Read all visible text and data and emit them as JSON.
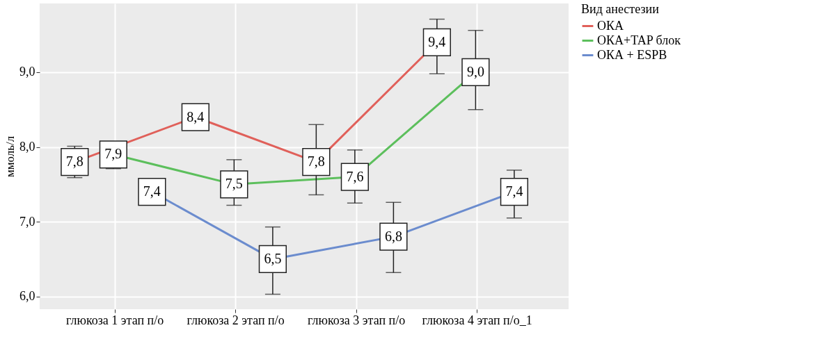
{
  "chart_data": {
    "type": "line",
    "ylabel": "ммоль/л",
    "legend_title": "Вид анестезии",
    "legend": "right",
    "grid": true,
    "marker": "square",
    "categories": [
      "глюкоза 1 этап п/о",
      "глюкоза 2 этап п/о",
      "глюкоза 3 этап п/о",
      "глюкоза 4 этап п/о_1"
    ],
    "ylim": [
      5.83,
      9.92
    ],
    "yticks": [
      {
        "value": 6,
        "label": "6,0"
      },
      {
        "value": 7,
        "label": "7,0"
      },
      {
        "value": 8,
        "label": "8,0"
      },
      {
        "value": 9,
        "label": "9,0"
      }
    ],
    "series": [
      {
        "name": "ОКА",
        "color": "#e0605a",
        "values": [
          7.8,
          8.4,
          7.8,
          9.4
        ],
        "value_labels": [
          "7,8",
          "8,4",
          "7,8",
          "9,4"
        ],
        "errors": [
          [
            7.59,
            8.01
          ],
          null,
          [
            7.36,
            8.3
          ],
          [
            8.98,
            9.71
          ]
        ]
      },
      {
        "name": "ОКА+TAP блок",
        "color": "#5cbf5c",
        "values": [
          7.9,
          7.5,
          7.6,
          9.0
        ],
        "value_labels": [
          "7,9",
          "7,5",
          "7,6",
          "9,0"
        ],
        "errors": [
          [
            7.71,
            8.06
          ],
          [
            7.22,
            7.83
          ],
          [
            7.25,
            7.96
          ],
          [
            8.5,
            9.56
          ]
        ]
      },
      {
        "name": "ОКА + ESPB",
        "color": "#6b8cce",
        "values": [
          7.4,
          6.5,
          6.8,
          7.4
        ],
        "value_labels": [
          "7,4",
          "6,5",
          "6,8",
          "7,4"
        ],
        "errors": [
          null,
          [
            6.03,
            6.93
          ],
          [
            6.32,
            7.26
          ],
          [
            7.05,
            7.69
          ]
        ]
      }
    ]
  }
}
